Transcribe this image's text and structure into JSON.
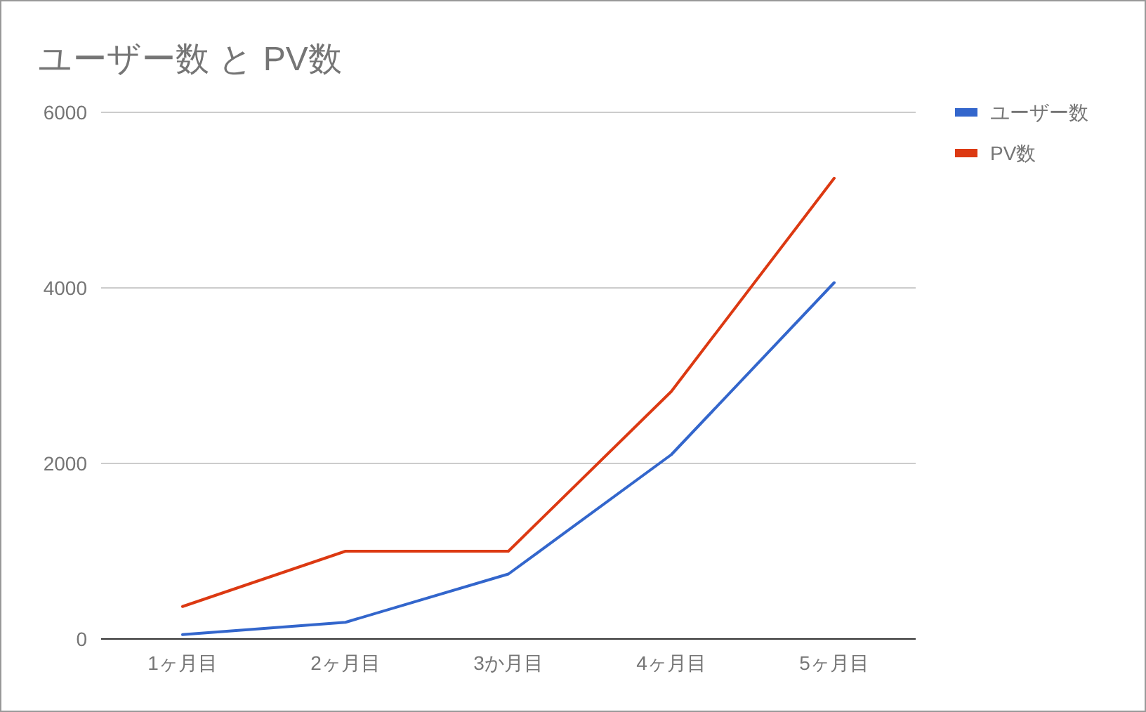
{
  "chart_data": {
    "type": "line",
    "title": "ユーザー数 と PV数",
    "categories": [
      "1ヶ月目",
      "2ヶ月目",
      "3か月目",
      "4ヶ月目",
      "5ヶ月目"
    ],
    "series": [
      {
        "name": "ユーザー数",
        "color": "#3366cc",
        "values": [
          50,
          190,
          740,
          2100,
          4060
        ]
      },
      {
        "name": "PV数",
        "color": "#dc3912",
        "values": [
          370,
          1000,
          1000,
          2820,
          5250
        ]
      }
    ],
    "ylim": [
      0,
      6000
    ],
    "yticks": [
      0,
      2000,
      4000,
      6000
    ],
    "grid": "y",
    "legend": "right",
    "marker": "none",
    "line_style": "solid"
  }
}
